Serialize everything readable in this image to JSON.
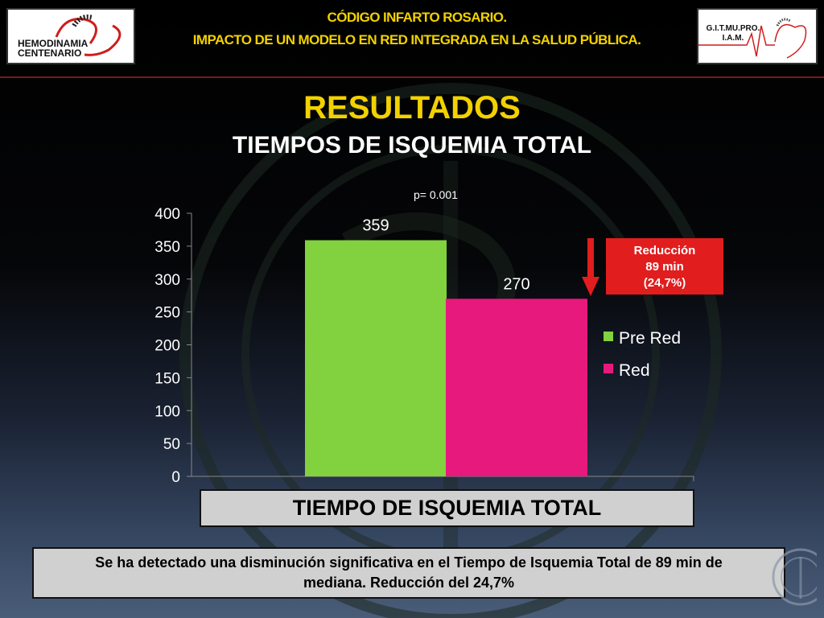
{
  "header": {
    "line1": "CÓDIGO INFARTO ROSARIO.",
    "line2": "IMPACTO DE UN MODELO EN RED INTEGRADA EN LA SALUD PÚBLICA.",
    "logo_left_line1": "HEMODINAMIA",
    "logo_left_line2": "CENTENARIO",
    "logo_right_line1": "G.I.T.MU.PRO.",
    "logo_right_line2": "I.A.M."
  },
  "title": "RESULTADOS",
  "subtitle": "TIEMPOS DE ISQUEMIA TOTAL",
  "p_value": "p= 0.001",
  "reduction": {
    "line1": "Reducción",
    "line2": "89 min",
    "line3": "(24,7%)"
  },
  "conclusion": {
    "line1": "Se ha detectado una disminución significativa en el  Tiempo de Isquemia Total de 89 min de",
    "line2": "mediana.  Reducción del  24,7%"
  },
  "colors": {
    "pre_red": "#82d13f",
    "red": "#e8197d",
    "accent_yellow": "#f2d100",
    "reduction_box": "#e11d1d"
  },
  "chart_data": {
    "type": "bar",
    "xlabel": "TIEMPO DE ISQUEMIA TOTAL",
    "ylabel": "",
    "ylim": [
      0,
      400
    ],
    "yticks": [
      0,
      50,
      100,
      150,
      200,
      250,
      300,
      350,
      400
    ],
    "series": [
      {
        "name": "Pre Red",
        "values": [
          359
        ],
        "color": "#82d13f"
      },
      {
        "name": "Red",
        "values": [
          270
        ],
        "color": "#e8197d"
      }
    ],
    "data_labels": [
      "359",
      "270"
    ],
    "legend": "right",
    "grid": false
  }
}
